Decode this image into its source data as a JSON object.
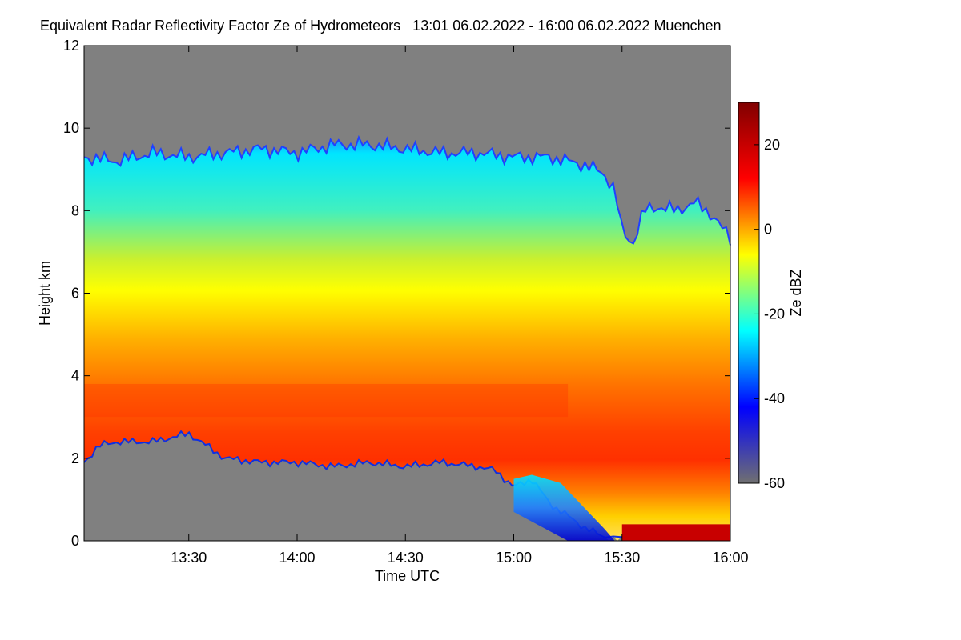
{
  "chart_data": {
    "type": "heatmap",
    "title": "Equivalent Radar Reflectivity Factor Ze of Hydrometeors   13:01 06.02.2022 - 16:00 06.02.2022 Muenchen",
    "xlabel": "Time UTC",
    "ylabel": "Height km",
    "colorbar_label": "Ze dBZ",
    "x_range_minutes": [
      781,
      960
    ],
    "x_ticks": [
      {
        "label": "13:30",
        "minutes": 810
      },
      {
        "label": "14:00",
        "minutes": 840
      },
      {
        "label": "14:30",
        "minutes": 870
      },
      {
        "label": "15:00",
        "minutes": 900
      },
      {
        "label": "15:30",
        "minutes": 930
      },
      {
        "label": "16:00",
        "minutes": 960
      }
    ],
    "ylim": [
      0,
      12
    ],
    "y_ticks": [
      0,
      2,
      4,
      6,
      8,
      10,
      12
    ],
    "colorbar_range": [
      -60,
      30
    ],
    "colorbar_ticks": [
      -60,
      -40,
      -20,
      0,
      20
    ],
    "colormap": [
      "#707070",
      "#0000ff",
      "#00ffff",
      "#ffff00",
      "#ff0000",
      "#800000"
    ],
    "no_data_color": "#808080",
    "cloud_top_km": [
      [
        781,
        9.3
      ],
      [
        790,
        9.2
      ],
      [
        800,
        9.4
      ],
      [
        810,
        9.3
      ],
      [
        820,
        9.4
      ],
      [
        830,
        9.5
      ],
      [
        840,
        9.4
      ],
      [
        850,
        9.6
      ],
      [
        860,
        9.6
      ],
      [
        870,
        9.5
      ],
      [
        880,
        9.4
      ],
      [
        890,
        9.4
      ],
      [
        900,
        9.3
      ],
      [
        910,
        9.3
      ],
      [
        920,
        9.1
      ],
      [
        925,
        8.9
      ],
      [
        928,
        8.5
      ],
      [
        930,
        7.5
      ],
      [
        933,
        7.2
      ],
      [
        936,
        8.0
      ],
      [
        940,
        8.1
      ],
      [
        945,
        8.0
      ],
      [
        950,
        8.2
      ],
      [
        955,
        7.9
      ],
      [
        960,
        7.3
      ]
    ],
    "cloud_base_km": [
      [
        781,
        1.9
      ],
      [
        785,
        2.3
      ],
      [
        790,
        2.4
      ],
      [
        800,
        2.4
      ],
      [
        810,
        2.6
      ],
      [
        815,
        2.3
      ],
      [
        820,
        2.0
      ],
      [
        830,
        1.9
      ],
      [
        840,
        1.9
      ],
      [
        850,
        1.8
      ],
      [
        860,
        1.9
      ],
      [
        870,
        1.8
      ],
      [
        880,
        1.9
      ],
      [
        890,
        1.8
      ],
      [
        895,
        1.7
      ],
      [
        900,
        1.3
      ],
      [
        905,
        1.5
      ],
      [
        910,
        0.9
      ],
      [
        915,
        0.6
      ],
      [
        920,
        0.3
      ],
      [
        925,
        0.1
      ],
      [
        930,
        0.0
      ],
      [
        960,
        0.0
      ]
    ],
    "bright_band_km": [
      3.0,
      3.8
    ]
  }
}
